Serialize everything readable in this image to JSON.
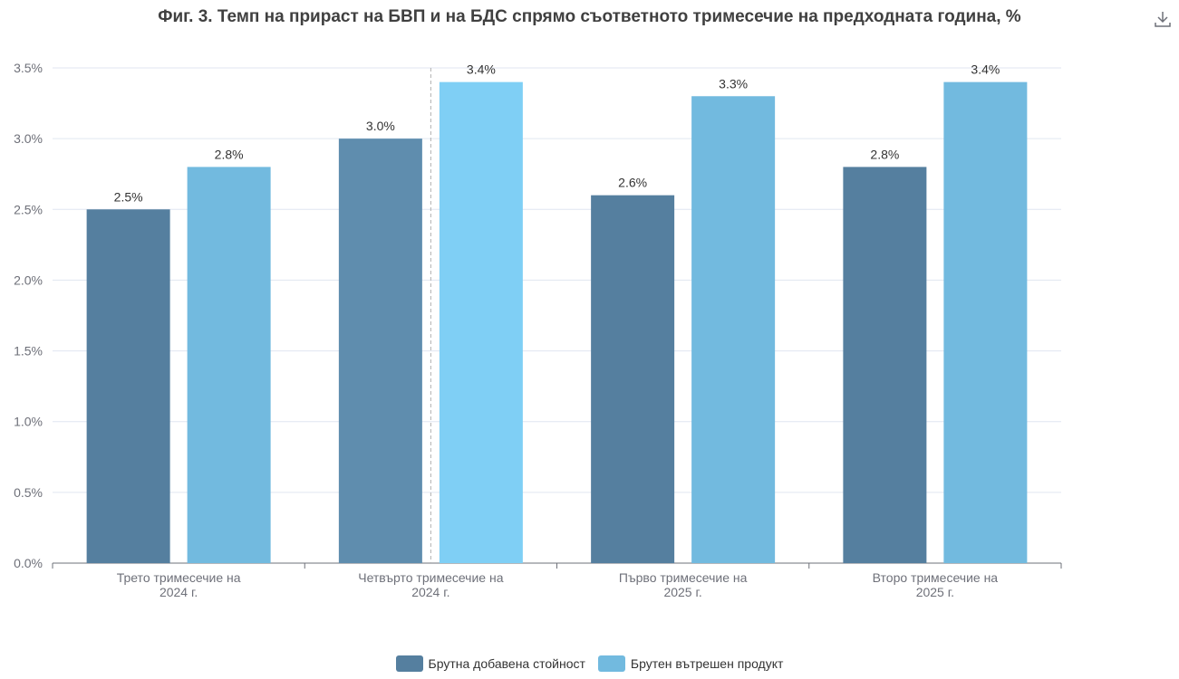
{
  "chart_data": {
    "type": "bar",
    "title": "Фиг. 3. Темп на прираст на БВП и на БДС спрямо съответното тримесечие на предходната година, %",
    "categories": [
      [
        "Трето тримесечие на",
        "2024 г."
      ],
      [
        "Четвърто тримесечие на",
        "2024 г."
      ],
      [
        "Първо тримесечие на",
        "2025 г."
      ],
      [
        "Второ тримесечие на",
        "2025 г."
      ]
    ],
    "series": [
      {
        "name": "Брутна добавена стойност",
        "values": [
          2.5,
          3.0,
          2.6,
          2.8
        ],
        "labels": [
          "2.5%",
          "3.0%",
          "2.6%",
          "2.8%"
        ],
        "color": "#557f9f"
      },
      {
        "name": "Брутен вътрешен продукт",
        "values": [
          2.8,
          3.4,
          3.3,
          3.4
        ],
        "labels": [
          "2.8%",
          "3.4%",
          "3.3%",
          "3.4%"
        ],
        "color": "#72badf"
      }
    ],
    "highlight_category": 1,
    "highlight_colors": [
      "#5f8dae",
      "#7fcff5"
    ],
    "y_ticks": [
      "0.0%",
      "0.5%",
      "1.0%",
      "1.5%",
      "2.0%",
      "2.5%",
      "3.0%",
      "3.5%"
    ],
    "ylim": [
      0,
      3.5
    ],
    "grid": true,
    "legend_position": "bottom-center"
  },
  "toolbar": {
    "download_icon": "download-icon"
  }
}
